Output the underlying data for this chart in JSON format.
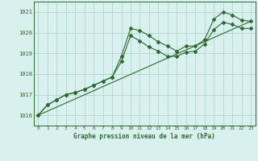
{
  "title": "Graphe pression niveau de la mer (hPa)",
  "background_color": "#d8f0ee",
  "grid_color": "#b8d8d4",
  "line_color": "#2d6a2d",
  "xlim": [
    -0.5,
    23.5
  ],
  "ylim": [
    1015.5,
    1021.5
  ],
  "yticks": [
    1016,
    1017,
    1018,
    1019,
    1020,
    1021
  ],
  "xticks": [
    0,
    1,
    2,
    3,
    4,
    5,
    6,
    7,
    8,
    9,
    10,
    11,
    12,
    13,
    14,
    15,
    16,
    17,
    18,
    19,
    20,
    21,
    22,
    23
  ],
  "series1_x": [
    0,
    1,
    2,
    3,
    4,
    5,
    6,
    7,
    8,
    9,
    10,
    11,
    12,
    13,
    14,
    15,
    16,
    17,
    18,
    19,
    20,
    21,
    22,
    23
  ],
  "series1_y": [
    1016.0,
    1016.5,
    1016.75,
    1017.0,
    1017.1,
    1017.25,
    1017.45,
    1017.65,
    1017.85,
    1018.85,
    1020.2,
    1020.1,
    1019.85,
    1019.55,
    1019.35,
    1019.1,
    1019.35,
    1019.35,
    1019.65,
    1020.65,
    1021.0,
    1020.85,
    1020.6,
    1020.55
  ],
  "series2_x": [
    0,
    1,
    2,
    3,
    4,
    5,
    6,
    7,
    8,
    9,
    10,
    11,
    12,
    13,
    14,
    15,
    16,
    17,
    18,
    19,
    20,
    21,
    22,
    23
  ],
  "series2_y": [
    1016.0,
    1016.5,
    1016.75,
    1017.0,
    1017.1,
    1017.25,
    1017.45,
    1017.65,
    1017.85,
    1018.6,
    1019.85,
    1019.6,
    1019.3,
    1019.1,
    1018.85,
    1018.85,
    1019.05,
    1019.1,
    1019.45,
    1020.15,
    1020.5,
    1020.4,
    1020.2,
    1020.2
  ],
  "series3_x": [
    0,
    23
  ],
  "series3_y": [
    1016.0,
    1020.55
  ]
}
